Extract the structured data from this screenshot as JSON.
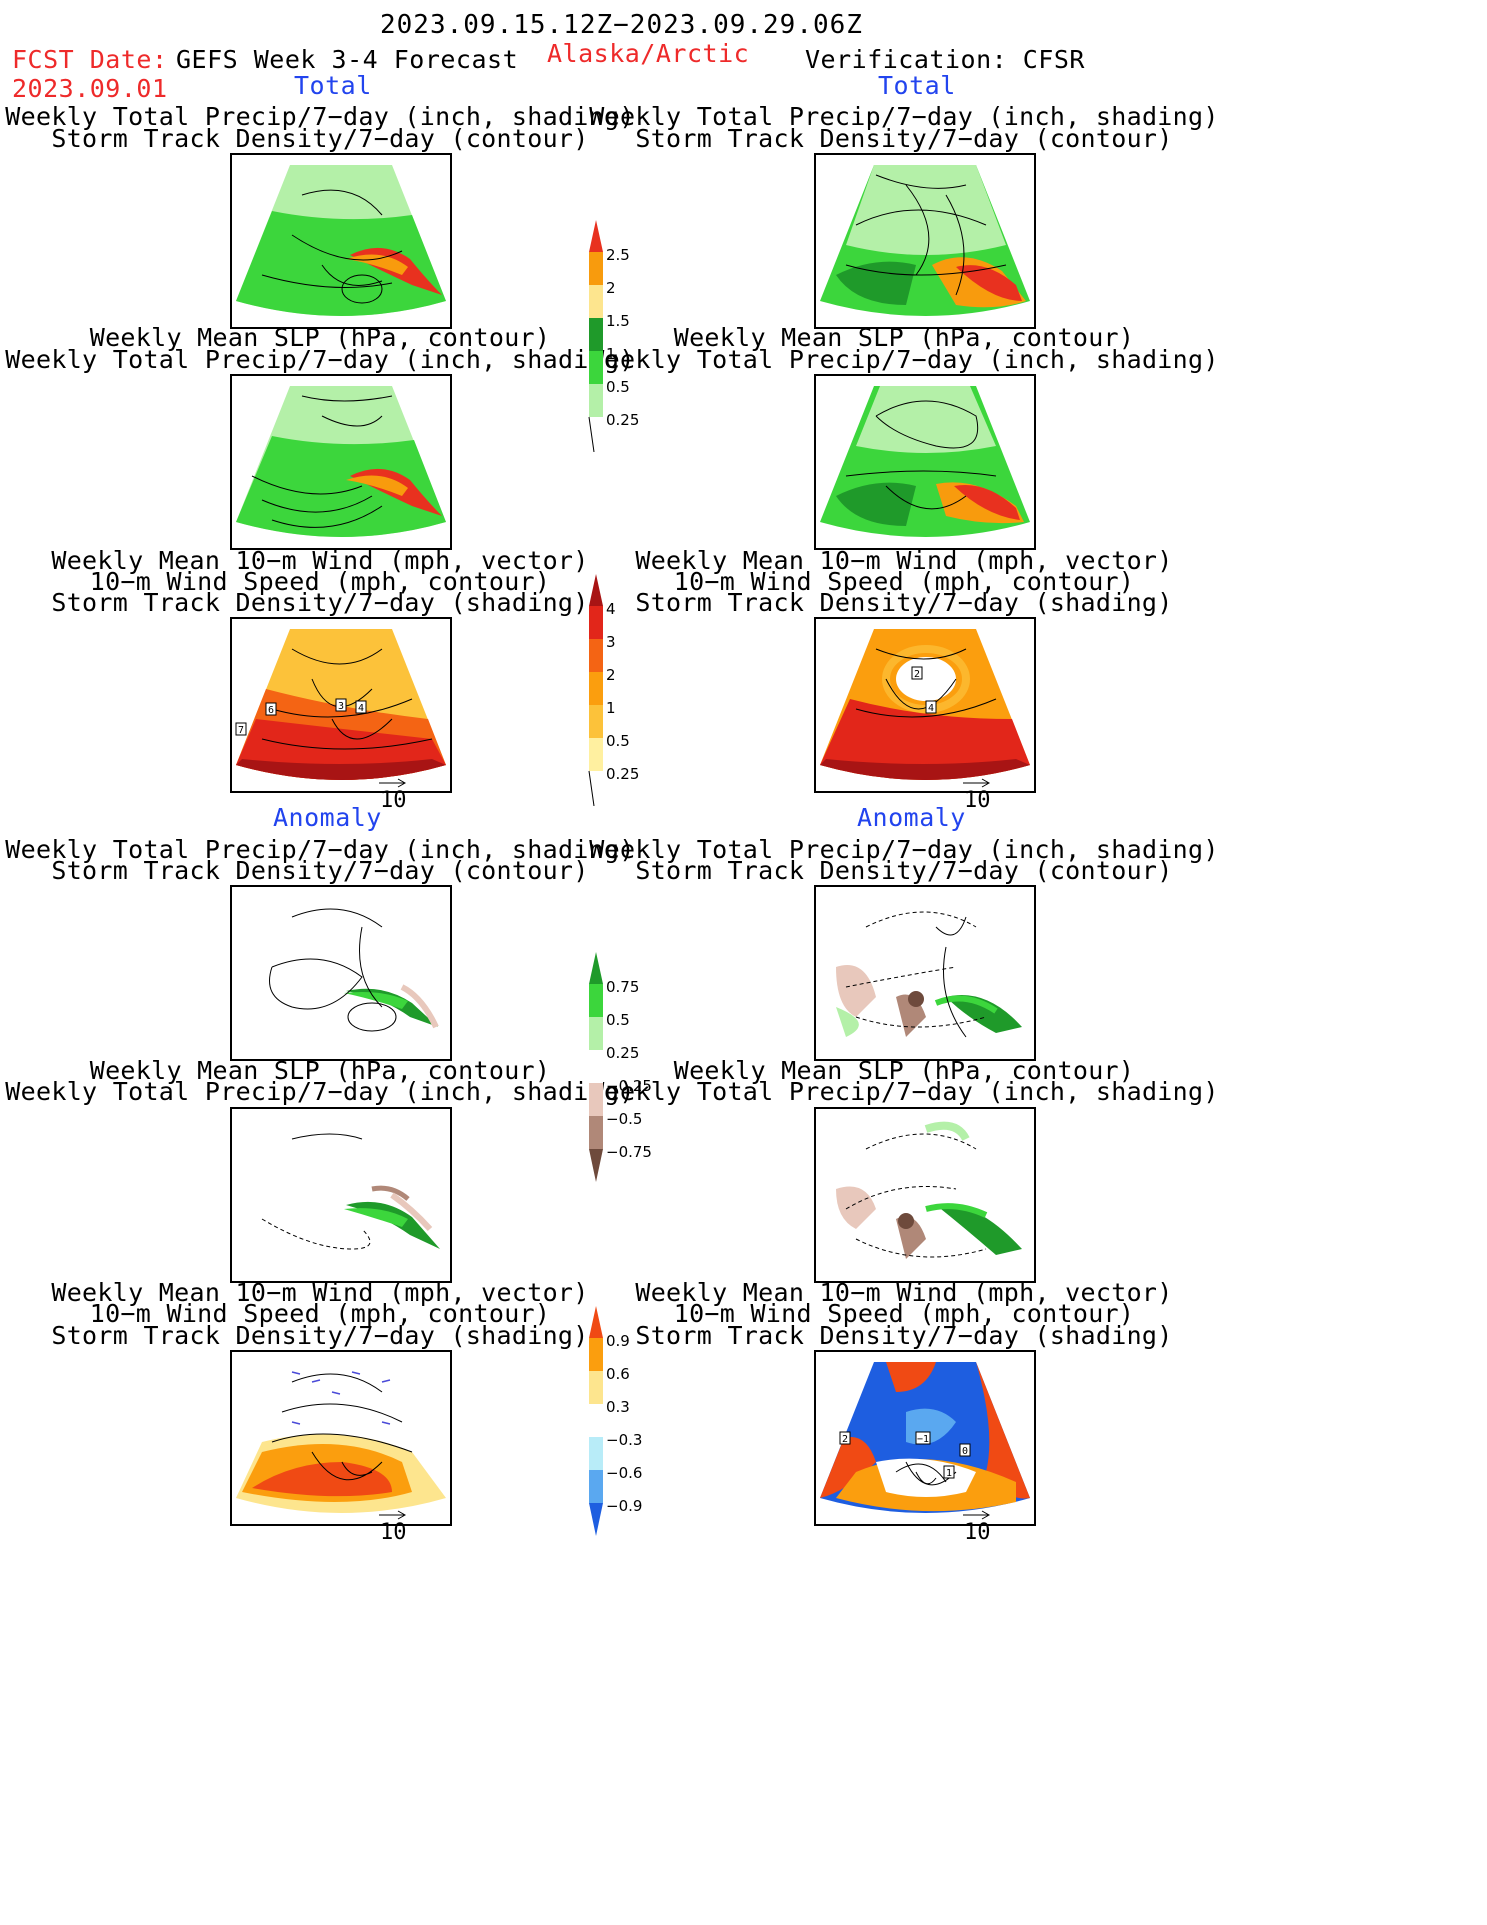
{
  "header": {
    "date_range": "2023.09.15.12Z−2023.09.29.06Z",
    "fcst_label": "FCST Date:",
    "fcst_date": "2023.09.01",
    "model": "GEFS Week 3-4 Forecast",
    "region": "Alaska/Arctic",
    "verification": "Verification: CFSR"
  },
  "sections": {
    "total_left": "Total",
    "total_right": "Total",
    "anomaly_left": "Anomaly",
    "anomaly_right": "Anomaly"
  },
  "captions": {
    "precip_storm": [
      "Weekly Total Precip/7−day (inch, shading)",
      "Storm Track Density/7−day (contour)"
    ],
    "slp_precip": [
      "Weekly Mean SLP (hPa, contour)",
      "Weekly Total Precip/7−day (inch, shading)"
    ],
    "wind_storm": [
      "Weekly Mean 10−m Wind (mph, vector)",
      "10−m Wind Speed (mph, contour)",
      "Storm Track Density/7−day (shading)"
    ]
  },
  "vector_reference": "10",
  "colorbars": {
    "precip_total": {
      "labels": [
        "2.5",
        "2",
        "1.5",
        "1",
        "0.5",
        "0.25"
      ],
      "colors": [
        "#e8311f",
        "#f89b0d",
        "#fde58e",
        "#1f9a2a",
        "#3cd63c",
        "#b4f0a8"
      ]
    },
    "storm_total": {
      "labels": [
        "4",
        "3",
        "2",
        "1",
        "0.5",
        "0.25"
      ],
      "colors": [
        "#a81414",
        "#e2261a",
        "#f46414",
        "#fb9e0e",
        "#fcc23a",
        "#fff0a0"
      ]
    },
    "precip_anom": {
      "labels": [
        "0.75",
        "0.5",
        "0.25",
        "−0.25",
        "−0.5",
        "−0.75"
      ],
      "colors": [
        "#1f9a2a",
        "#3cd63c",
        "#b4f0a8",
        "#ffffff",
        "#e8c8bc",
        "#b08878",
        "#6e4a3c"
      ]
    },
    "storm_anom": {
      "labels": [
        "0.9",
        "0.6",
        "0.3",
        "−0.3",
        "−0.6",
        "−0.9"
      ],
      "colors": [
        "#f04a14",
        "#fb9e0e",
        "#fde58e",
        "#ffffff",
        "#b8ecf8",
        "#5aa8f0",
        "#1e5ee0"
      ]
    },
    "contour_labels_left_storm": [
      "7",
      "6",
      "3",
      "4"
    ],
    "contour_labels_right_storm": [
      "2",
      "4"
    ],
    "contour_labels_right_anom": [
      "2",
      "−1",
      "0",
      "1"
    ]
  }
}
